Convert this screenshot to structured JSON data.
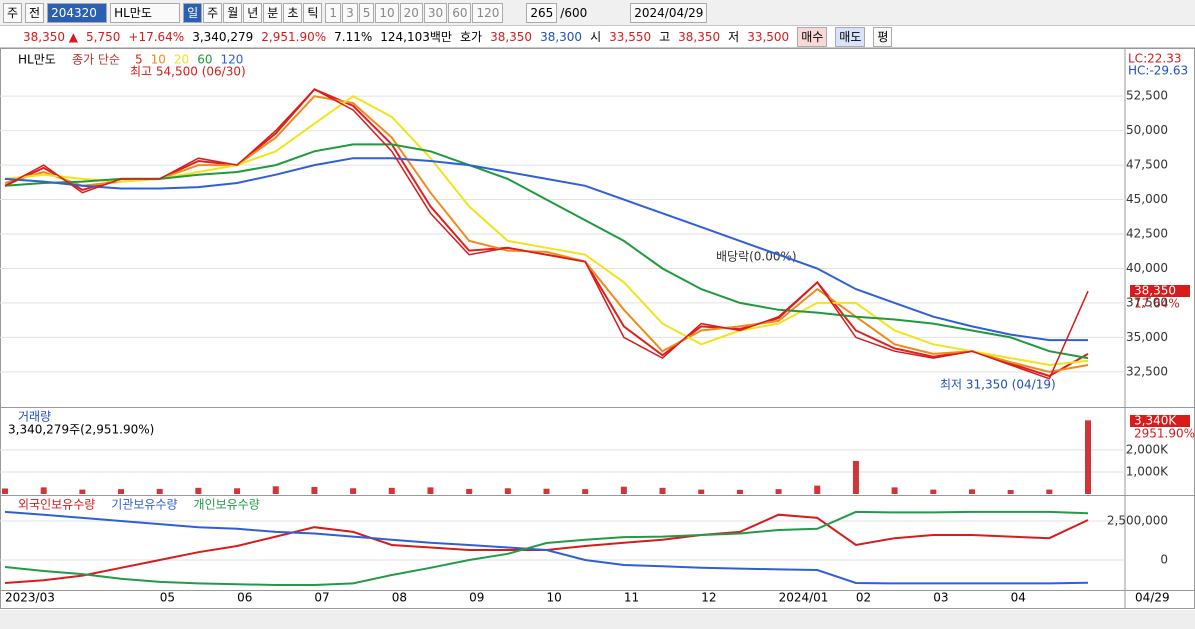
{
  "toolbar": {
    "period": "주",
    "prev": "전",
    "code": "204320",
    "name": "HL만도",
    "intervals": [
      "일",
      "주",
      "월",
      "년",
      "분",
      "초",
      "틱"
    ],
    "minutes": [
      "1",
      "3",
      "5",
      "10",
      "20",
      "30",
      "60",
      "120"
    ],
    "count": "265",
    "max": "/600",
    "date": "2024/04/29"
  },
  "quote": {
    "price": "38,350 ▲",
    "change": "5,750",
    "rate": "+17.64%",
    "volume": "3,340,279",
    "volume_rate": "2,951.90%",
    "turnover": "7.11%",
    "amount": "124,103백만",
    "bid_label": "호가",
    "ask": "38,350",
    "bid": "38,300",
    "open_label": "시",
    "open": "33,550",
    "high_label": "고",
    "high": "38,350",
    "low_label": "저",
    "low": "33,500",
    "buy": "매수",
    "sell": "매도",
    "avg": "평"
  },
  "chart_data": [
    {
      "type": "line",
      "name": "HL만도",
      "legend_label": "종가 단순",
      "lc": "LC:22.33",
      "hc": "HC:-29.63",
      "price_tag": "38,350",
      "change_tag": "17.64%",
      "annotations": {
        "high": "최고 54,500 (06/30)",
        "low": "최저 31,350 (04/19)",
        "dividend": "배당락(0.00%)"
      },
      "categories": [
        "2023/03",
        null,
        null,
        null,
        "05",
        null,
        "06",
        null,
        "07",
        null,
        "08",
        null,
        "09",
        null,
        "10",
        null,
        "11",
        null,
        "12",
        null,
        "2024/01",
        null,
        "02",
        null,
        "03",
        null,
        "04",
        null,
        null
      ],
      "end_label": "04/29",
      "values": [
        46000,
        47500,
        45500,
        46500,
        46500,
        48000,
        47500,
        50000,
        53000,
        51500,
        48500,
        44000,
        41000,
        41500,
        41000,
        40500,
        35000,
        33500,
        36000,
        35500,
        36500,
        39000,
        35000,
        34000,
        33500,
        34000,
        33000,
        32000,
        38350
      ],
      "color": "#d81b1b",
      "series": [
        {
          "name": "5",
          "color": "#e02020",
          "values": [
            46000,
            47300,
            45700,
            46500,
            46500,
            47800,
            47500,
            49800,
            53000,
            51800,
            49000,
            44500,
            41300,
            41500,
            41000,
            40500,
            35800,
            33700,
            35800,
            35600,
            36400,
            39000,
            35500,
            34200,
            33600,
            34000,
            33100,
            32200,
            33800
          ]
        },
        {
          "name": "10",
          "color": "#f08a1c",
          "values": [
            46200,
            47000,
            46000,
            46300,
            46500,
            47500,
            47500,
            49500,
            52500,
            52000,
            49500,
            45500,
            42000,
            41300,
            41200,
            40500,
            37000,
            34000,
            35500,
            35800,
            36200,
            38500,
            36500,
            34500,
            33800,
            34000,
            33200,
            32500,
            33000
          ]
        },
        {
          "name": "20",
          "color": "#f2e31a",
          "values": [
            46500,
            46800,
            46500,
            46300,
            46500,
            47000,
            47500,
            48500,
            50500,
            52500,
            51000,
            48000,
            44500,
            42000,
            41500,
            41000,
            39000,
            36000,
            34500,
            35500,
            36000,
            37500,
            37500,
            35500,
            34500,
            34000,
            33500,
            33000,
            33300
          ]
        },
        {
          "name": "60",
          "color": "#1e9a3c",
          "values": [
            46000,
            46200,
            46300,
            46500,
            46500,
            46800,
            47000,
            47500,
            48500,
            49000,
            49000,
            48500,
            47500,
            46500,
            45000,
            43500,
            42000,
            40000,
            38500,
            37500,
            37000,
            36800,
            36500,
            36300,
            36000,
            35500,
            35000,
            34000,
            33500
          ]
        },
        {
          "name": "120",
          "color": "#2f5fd8",
          "values": [
            46500,
            46300,
            46000,
            45800,
            45800,
            45900,
            46200,
            46800,
            47500,
            48000,
            48000,
            47800,
            47500,
            47000,
            46500,
            46000,
            45000,
            44000,
            43000,
            42000,
            41000,
            40000,
            38500,
            37500,
            36500,
            35800,
            35200,
            34800,
            34800
          ]
        }
      ],
      "ylim": [
        29950,
        55850
      ],
      "yticks": [
        {
          "value": 32500,
          "label": "32,500"
        },
        {
          "value": 35000,
          "label": "35,000"
        },
        {
          "value": 37500,
          "label": "37,500"
        },
        {
          "value": 40000,
          "label": "40,000"
        },
        {
          "value": 42500,
          "label": "42,500"
        },
        {
          "value": 45000,
          "label": "45,000"
        },
        {
          "value": 47500,
          "label": "47,500"
        },
        {
          "value": 50000,
          "label": "50,000"
        },
        {
          "value": 52500,
          "label": "52,500"
        }
      ],
      "grid": true
    },
    {
      "type": "bar",
      "name": "거래량",
      "summary": "3,340,279주(2,951.90%)",
      "tag": "3,340K",
      "tag_rate": "2951.90%",
      "color": "#d0353a",
      "values": [
        250000,
        300000,
        200000,
        220000,
        230000,
        280000,
        260000,
        350000,
        320000,
        260000,
        280000,
        300000,
        230000,
        260000,
        240000,
        220000,
        330000,
        280000,
        200000,
        190000,
        220000,
        380000,
        1500000,
        300000,
        200000,
        210000,
        180000,
        200000,
        3340279
      ],
      "ylim": [
        0,
        3900000
      ],
      "yticks": [
        {
          "value": 1000000,
          "label": "1,000K"
        },
        {
          "value": 2000000,
          "label": "2,000K"
        }
      ]
    },
    {
      "type": "line",
      "series": [
        {
          "name": "외국인보유수량",
          "color": "#d81b1b",
          "values": [
            -1470000,
            -1300000,
            -1000000,
            -500000,
            0,
            500000,
            900000,
            1500000,
            2100000,
            1800000,
            960000,
            800000,
            640000,
            640000,
            640000,
            900000,
            1100000,
            1300000,
            1600000,
            1800000,
            2900000,
            2700000,
            960000,
            1400000,
            1600000,
            1600000,
            1500000,
            1400000,
            2560000
          ]
        },
        {
          "name": "기관보유수량",
          "color": "#2f5fd8",
          "values": [
            3080000,
            2900000,
            2700000,
            2500000,
            2300000,
            2100000,
            2000000,
            1800000,
            1700000,
            1500000,
            1300000,
            1100000,
            960000,
            800000,
            640000,
            0,
            -320000,
            -400000,
            -500000,
            -550000,
            -600000,
            -640000,
            -1470000,
            -1500000,
            -1500000,
            -1500000,
            -1500000,
            -1500000,
            -1450000
          ]
        },
        {
          "name": "개인보유수량",
          "color": "#239a4a",
          "values": [
            -450000,
            -700000,
            -900000,
            -1200000,
            -1400000,
            -1500000,
            -1550000,
            -1600000,
            -1600000,
            -1500000,
            -960000,
            -500000,
            0,
            400000,
            1090000,
            1300000,
            1470000,
            1500000,
            1600000,
            1700000,
            1920000,
            2000000,
            3080000,
            3050000,
            3050000,
            3080000,
            3080000,
            3080000,
            3000000
          ]
        }
      ],
      "ylim": [
        -1920000,
        4100000
      ],
      "yticks": [
        {
          "value": 0,
          "label": "0"
        },
        {
          "value": 2500000,
          "label": "2,500,000"
        }
      ]
    }
  ]
}
